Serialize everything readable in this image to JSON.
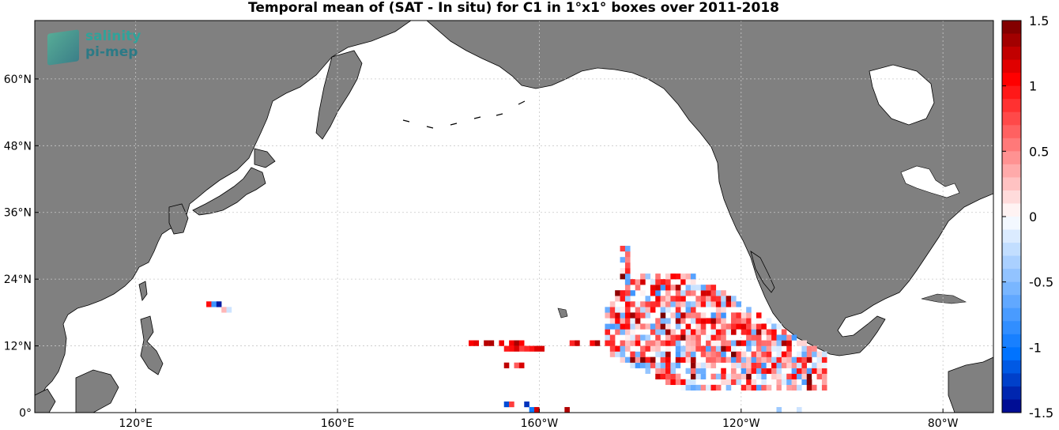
{
  "title": "Temporal mean of (SAT - In situ) for C1 in 1°x1° boxes over 2011-2018",
  "logo": {
    "line1": "salinity",
    "line2": "pi-mep"
  },
  "colors": {
    "land": "#808080",
    "ocean": "#ffffff",
    "grid": "#c8c8c8",
    "coast": "#000000"
  },
  "map": {
    "lat_ticks": [
      {
        "value": 60,
        "label": "60°N"
      },
      {
        "value": 48,
        "label": "48°N"
      },
      {
        "value": 36,
        "label": "36°N"
      },
      {
        "value": 24,
        "label": "24°N"
      },
      {
        "value": 12,
        "label": "12°N"
      },
      {
        "value": 0,
        "label": "0°"
      }
    ],
    "lon_ticks": [
      {
        "value": 120,
        "label": "120°E"
      },
      {
        "value": 160,
        "label": "160°E"
      },
      {
        "value": 200,
        "label": "160°W"
      },
      {
        "value": 240,
        "label": "120°W"
      },
      {
        "value": 280,
        "label": "80°W"
      }
    ]
  },
  "colorbar": {
    "range": [
      -1.5,
      1.5
    ],
    "ticks": [
      {
        "value": 1.5,
        "label": "1.5"
      },
      {
        "value": 1,
        "label": "1"
      },
      {
        "value": 0.5,
        "label": "0.5"
      },
      {
        "value": 0,
        "label": "0"
      },
      {
        "value": -0.5,
        "label": "-0.5"
      },
      {
        "value": -1,
        "label": "-1"
      },
      {
        "value": -1.5,
        "label": "-1.5"
      }
    ]
  }
}
